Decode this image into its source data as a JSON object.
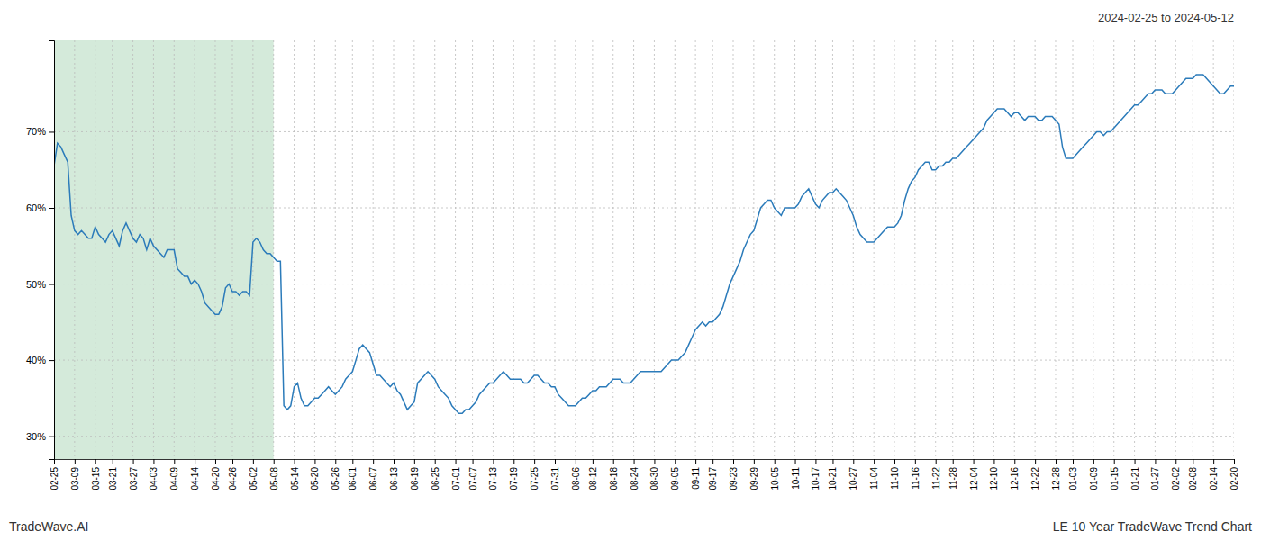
{
  "chart_data": {
    "type": "line",
    "title": "2024-02-25 to 2024-05-12",
    "annotations": [
      "TradeWave.AI",
      "LE 10 Year TradeWave Trend Chart"
    ],
    "color": "#2b7bba",
    "grid": true,
    "shaded_region": {
      "from": "02-25",
      "to": "05-08",
      "color": "#d4eada"
    },
    "ylim": [
      0.27,
      0.82
    ],
    "yticks": [
      {
        "value": 0.3,
        "label": "30%"
      },
      {
        "value": 0.4,
        "label": "40%"
      },
      {
        "value": 0.5,
        "label": "50%"
      },
      {
        "value": 0.6,
        "label": "60%"
      },
      {
        "value": 0.7,
        "label": "70%"
      }
    ],
    "categories": [
      "02-25",
      null,
      null,
      null,
      null,
      null,
      "03-09",
      null,
      null,
      null,
      null,
      null,
      "03-15",
      null,
      null,
      null,
      null,
      "03-21",
      null,
      null,
      null,
      null,
      null,
      "03-27",
      null,
      null,
      null,
      null,
      null,
      "04-03",
      null,
      null,
      null,
      null,
      null,
      "04-09",
      null,
      null,
      null,
      null,
      null,
      "04-14",
      null,
      null,
      null,
      null,
      null,
      "04-20",
      null,
      null,
      null,
      null,
      "04-26",
      null,
      null,
      null,
      null,
      null,
      "05-02",
      null,
      null,
      null,
      null,
      null,
      "05-08",
      null,
      null,
      null,
      null,
      null,
      "05-14",
      null,
      null,
      null,
      null,
      null,
      "05-20",
      null,
      null,
      null,
      null,
      null,
      "05-26",
      null,
      null,
      null,
      null,
      "06-01",
      null,
      null,
      null,
      null,
      null,
      "06-07",
      null,
      null,
      null,
      null,
      null,
      "06-13",
      null,
      null,
      null,
      null,
      null,
      "06-19",
      null,
      null,
      null,
      null,
      null,
      "06-25",
      null,
      null,
      null,
      null,
      null,
      "07-01",
      null,
      null,
      null,
      null,
      "07-07",
      null,
      null,
      null,
      null,
      null,
      "07-13",
      null,
      null,
      null,
      null,
      null,
      "07-19",
      null,
      null,
      null,
      null,
      null,
      "07-25",
      null,
      null,
      null,
      null,
      null,
      "07-31",
      null,
      null,
      null,
      null,
      null,
      "08-06",
      null,
      null,
      null,
      null,
      "08-12",
      null,
      null,
      null,
      null,
      null,
      "08-18",
      null,
      null,
      null,
      null,
      null,
      "08-24",
      null,
      null,
      null,
      null,
      null,
      "08-30",
      null,
      null,
      null,
      null,
      null,
      "09-05",
      null,
      null,
      null,
      null,
      null,
      "09-11",
      null,
      null,
      null,
      null,
      "09-17",
      null,
      null,
      null,
      null,
      null,
      "09-23",
      null,
      null,
      null,
      null,
      null,
      "09-29",
      null,
      null,
      null,
      null,
      null,
      "10-05",
      null,
      null,
      null,
      null,
      null,
      "10-11",
      null,
      null,
      null,
      null,
      null,
      "10-17",
      null,
      null,
      null,
      null,
      "10-21",
      null,
      null,
      null,
      null,
      null,
      "10-27",
      null,
      null,
      null,
      null,
      null,
      "11-04",
      null,
      null,
      null,
      null,
      null,
      "11-10",
      null,
      null,
      null,
      null,
      null,
      "11-16",
      null,
      null,
      null,
      null,
      null,
      "11-22",
      null,
      null,
      null,
      null,
      "11-28",
      null,
      null,
      null,
      null,
      null,
      "12-04",
      null,
      null,
      null,
      null,
      null,
      "12-10",
      null,
      null,
      null,
      null,
      null,
      "12-16",
      null,
      null,
      null,
      null,
      null,
      "12-22",
      null,
      null,
      null,
      null,
      null,
      "12-28",
      null,
      null,
      null,
      null,
      "01-03",
      null,
      null,
      null,
      null,
      null,
      "01-09",
      null,
      null,
      null,
      null,
      null,
      "01-15",
      null,
      null,
      null,
      null,
      null,
      "01-21",
      null,
      null,
      null,
      null,
      null,
      "01-27",
      null,
      null,
      null,
      null,
      null,
      "02-02",
      null,
      null,
      null,
      null,
      "02-08",
      null,
      null,
      null,
      null,
      null,
      "02-14",
      null,
      null,
      null,
      null,
      null,
      "02-20"
    ],
    "values": [
      0.655,
      0.685,
      0.68,
      0.67,
      0.66,
      0.59,
      0.57,
      0.565,
      0.57,
      0.565,
      0.56,
      0.56,
      0.575,
      0.565,
      0.56,
      0.555,
      0.565,
      0.57,
      0.56,
      0.55,
      0.57,
      0.58,
      0.57,
      0.56,
      0.555,
      0.565,
      0.56,
      0.545,
      0.56,
      0.55,
      0.545,
      0.54,
      0.535,
      0.545,
      0.545,
      0.545,
      0.52,
      0.515,
      0.51,
      0.51,
      0.5,
      0.505,
      0.5,
      0.49,
      0.475,
      0.47,
      0.465,
      0.46,
      0.46,
      0.47,
      0.495,
      0.5,
      0.49,
      0.49,
      0.485,
      0.49,
      0.49,
      0.485,
      0.555,
      0.56,
      0.555,
      0.545,
      0.54,
      0.54,
      0.535,
      0.53,
      0.53,
      0.34,
      0.335,
      0.34,
      0.365,
      0.37,
      0.35,
      0.34,
      0.34,
      0.345,
      0.35,
      0.35,
      0.355,
      0.36,
      0.365,
      0.36,
      0.355,
      0.36,
      0.365,
      0.375,
      0.38,
      0.385,
      0.4,
      0.415,
      0.42,
      0.415,
      0.41,
      0.395,
      0.38,
      0.38,
      0.375,
      0.37,
      0.365,
      0.37,
      0.36,
      0.355,
      0.345,
      0.335,
      0.34,
      0.345,
      0.37,
      0.375,
      0.38,
      0.385,
      0.38,
      0.375,
      0.365,
      0.36,
      0.355,
      0.35,
      0.34,
      0.335,
      0.33,
      0.33,
      0.335,
      0.335,
      0.34,
      0.345,
      0.355,
      0.36,
      0.365,
      0.37,
      0.37,
      0.375,
      0.38,
      0.385,
      0.38,
      0.375,
      0.375,
      0.375,
      0.375,
      0.37,
      0.37,
      0.375,
      0.38,
      0.38,
      0.375,
      0.37,
      0.37,
      0.365,
      0.365,
      0.355,
      0.35,
      0.345,
      0.34,
      0.34,
      0.34,
      0.345,
      0.35,
      0.35,
      0.355,
      0.36,
      0.36,
      0.365,
      0.365,
      0.365,
      0.37,
      0.375,
      0.375,
      0.375,
      0.37,
      0.37,
      0.37,
      0.375,
      0.38,
      0.385,
      0.385,
      0.385,
      0.385,
      0.385,
      0.385,
      0.385,
      0.39,
      0.395,
      0.4,
      0.4,
      0.4,
      0.405,
      0.41,
      0.42,
      0.43,
      0.44,
      0.445,
      0.45,
      0.445,
      0.45,
      0.45,
      0.455,
      0.46,
      0.47,
      0.485,
      0.5,
      0.51,
      0.52,
      0.53,
      0.545,
      0.555,
      0.565,
      0.57,
      0.585,
      0.6,
      0.605,
      0.61,
      0.61,
      0.6,
      0.595,
      0.59,
      0.6,
      0.6,
      0.6,
      0.6,
      0.605,
      0.615,
      0.62,
      0.625,
      0.615,
      0.605,
      0.6,
      0.61,
      0.615,
      0.62,
      0.62,
      0.625,
      0.62,
      0.615,
      0.61,
      0.6,
      0.59,
      0.575,
      0.565,
      0.56,
      0.555,
      0.555,
      0.555,
      0.56,
      0.565,
      0.57,
      0.575,
      0.575,
      0.575,
      0.58,
      0.59,
      0.61,
      0.625,
      0.635,
      0.64,
      0.65,
      0.655,
      0.66,
      0.66,
      0.65,
      0.65,
      0.655,
      0.655,
      0.66,
      0.66,
      0.665,
      0.665,
      0.67,
      0.675,
      0.68,
      0.685,
      0.69,
      0.695,
      0.7,
      0.705,
      0.715,
      0.72,
      0.725,
      0.73,
      0.73,
      0.73,
      0.725,
      0.72,
      0.725,
      0.725,
      0.72,
      0.715,
      0.72,
      0.72,
      0.72,
      0.715,
      0.715,
      0.72,
      0.72,
      0.72,
      0.715,
      0.71,
      0.68,
      0.665,
      0.665,
      0.665,
      0.67,
      0.675,
      0.68,
      0.685,
      0.69,
      0.695,
      0.7,
      0.7,
      0.695,
      0.7,
      0.7,
      0.705,
      0.71,
      0.715,
      0.72,
      0.725,
      0.73,
      0.735,
      0.735,
      0.74,
      0.745,
      0.75,
      0.75,
      0.755,
      0.755,
      0.755,
      0.75,
      0.75,
      0.75,
      0.755,
      0.76,
      0.765,
      0.77,
      0.77,
      0.77,
      0.775,
      0.775,
      0.775,
      0.77,
      0.765,
      0.76,
      0.755,
      0.75,
      0.75,
      0.755,
      0.76,
      0.76
    ]
  }
}
